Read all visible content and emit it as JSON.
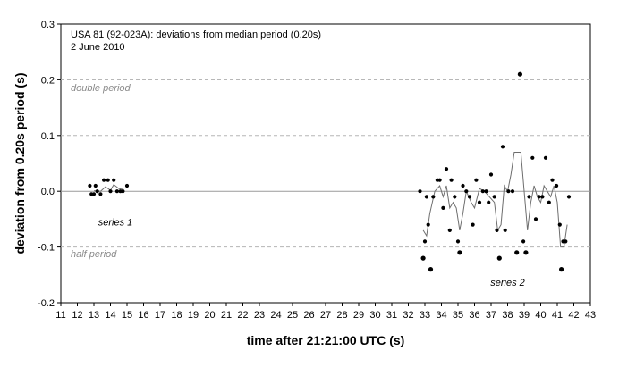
{
  "chart_data": {
    "type": "scatter",
    "title": "USA 81 (92-023A): deviations from median period (0.20s)",
    "subtitle": "2 June 2010",
    "xlabel": "time after 21:21:00 UTC (s)",
    "ylabel": "deviation from 0.20s period (s)",
    "xlim": [
      11,
      43
    ],
    "ylim": [
      -0.2,
      0.3
    ],
    "x_ticks": [
      "11",
      "12",
      "13",
      "14",
      "15",
      "16",
      "17",
      "18",
      "19",
      "20",
      "21",
      "22",
      "23",
      "24",
      "25",
      "26",
      "27",
      "28",
      "29",
      "30",
      "31",
      "32",
      "33",
      "34",
      "35",
      "36",
      "37",
      "38",
      "39",
      "40",
      "41",
      "42",
      "43"
    ],
    "y_ticks": [
      "-0.2",
      "-0.1",
      "0.0",
      "0.1",
      "0.2",
      "0.3"
    ],
    "grid": "horizontal dashed at 0.1 and 0.2",
    "reference_lines": [
      {
        "label": "double period",
        "y": 0.2
      },
      {
        "label": "half period",
        "y": -0.1
      }
    ],
    "annotations": [
      {
        "text": "series 1",
        "x": 14.3,
        "y": -0.055
      },
      {
        "text": "series 2",
        "x": 38.0,
        "y": -0.163
      }
    ],
    "series": [
      {
        "name": "series 1",
        "points": [
          [
            12.75,
            0.01
          ],
          [
            12.85,
            -0.005
          ],
          [
            13.0,
            -0.005
          ],
          [
            13.1,
            0.01
          ],
          [
            13.2,
            0.0
          ],
          [
            13.4,
            -0.005
          ],
          [
            13.6,
            0.02
          ],
          [
            13.85,
            0.02
          ],
          [
            14.0,
            0.0
          ],
          [
            14.2,
            0.02
          ],
          [
            14.4,
            0.0
          ],
          [
            14.6,
            0.0
          ],
          [
            14.75,
            0.0
          ],
          [
            15.0,
            0.01
          ]
        ],
        "moving_average": [
          [
            13.0,
            0.001
          ],
          [
            13.4,
            0.0
          ],
          [
            13.7,
            0.008
          ],
          [
            14.0,
            0.002
          ],
          [
            14.2,
            0.012
          ],
          [
            14.5,
            0.005
          ],
          [
            14.8,
            0.003
          ]
        ]
      },
      {
        "name": "series 2",
        "points": [
          [
            32.7,
            0.0
          ],
          [
            32.9,
            -0.12
          ],
          [
            33.0,
            -0.09
          ],
          [
            33.1,
            -0.01
          ],
          [
            33.2,
            -0.06
          ],
          [
            33.35,
            -0.14
          ],
          [
            33.5,
            -0.01
          ],
          [
            33.75,
            0.02
          ],
          [
            33.9,
            0.02
          ],
          [
            34.1,
            -0.03
          ],
          [
            34.3,
            0.04
          ],
          [
            34.5,
            -0.07
          ],
          [
            34.6,
            0.02
          ],
          [
            34.8,
            -0.01
          ],
          [
            35.0,
            -0.09
          ],
          [
            35.1,
            -0.11
          ],
          [
            35.3,
            0.01
          ],
          [
            35.5,
            0.0
          ],
          [
            35.7,
            -0.01
          ],
          [
            35.9,
            -0.06
          ],
          [
            36.1,
            0.02
          ],
          [
            36.3,
            -0.02
          ],
          [
            36.5,
            0.0
          ],
          [
            36.7,
            0.0
          ],
          [
            36.85,
            -0.02
          ],
          [
            37.0,
            0.03
          ],
          [
            37.2,
            -0.01
          ],
          [
            37.35,
            -0.07
          ],
          [
            37.5,
            -0.12
          ],
          [
            37.7,
            0.08
          ],
          [
            37.85,
            -0.07
          ],
          [
            38.05,
            0.0
          ],
          [
            38.3,
            0.0
          ],
          [
            38.55,
            -0.11
          ],
          [
            38.75,
            0.21
          ],
          [
            38.95,
            -0.09
          ],
          [
            39.1,
            -0.11
          ],
          [
            39.3,
            -0.01
          ],
          [
            39.5,
            0.06
          ],
          [
            39.7,
            -0.05
          ],
          [
            39.9,
            -0.01
          ],
          [
            40.1,
            -0.01
          ],
          [
            40.3,
            0.06
          ],
          [
            40.5,
            -0.02
          ],
          [
            40.7,
            0.02
          ],
          [
            40.95,
            0.01
          ],
          [
            41.15,
            -0.06
          ],
          [
            41.25,
            -0.14
          ],
          [
            41.35,
            -0.09
          ],
          [
            41.5,
            -0.09
          ],
          [
            41.7,
            -0.01
          ]
        ],
        "moving_average": [
          [
            32.9,
            -0.07
          ],
          [
            33.1,
            -0.08
          ],
          [
            33.3,
            -0.04
          ],
          [
            33.6,
            0.0
          ],
          [
            33.9,
            0.01
          ],
          [
            34.1,
            -0.01
          ],
          [
            34.3,
            0.01
          ],
          [
            34.5,
            -0.03
          ],
          [
            34.7,
            -0.02
          ],
          [
            34.9,
            -0.03
          ],
          [
            35.1,
            -0.07
          ],
          [
            35.3,
            -0.04
          ],
          [
            35.5,
            0.0
          ],
          [
            35.8,
            -0.02
          ],
          [
            36.0,
            -0.03
          ],
          [
            36.3,
            0.005
          ],
          [
            36.6,
            0.0
          ],
          [
            36.9,
            -0.01
          ],
          [
            37.2,
            -0.02
          ],
          [
            37.4,
            -0.07
          ],
          [
            37.6,
            -0.06
          ],
          [
            37.8,
            0.01
          ],
          [
            38.0,
            0.0
          ],
          [
            38.2,
            0.03
          ],
          [
            38.4,
            0.07
          ],
          [
            38.6,
            0.07
          ],
          [
            38.8,
            0.07
          ],
          [
            39.0,
            0.0
          ],
          [
            39.2,
            -0.07
          ],
          [
            39.4,
            -0.02
          ],
          [
            39.6,
            0.01
          ],
          [
            39.8,
            -0.01
          ],
          [
            40.0,
            -0.02
          ],
          [
            40.2,
            0.01
          ],
          [
            40.4,
            0.0
          ],
          [
            40.6,
            -0.01
          ],
          [
            40.8,
            0.01
          ],
          [
            41.0,
            -0.02
          ],
          [
            41.2,
            -0.1
          ],
          [
            41.4,
            -0.1
          ],
          [
            41.6,
            -0.06
          ]
        ]
      }
    ]
  }
}
